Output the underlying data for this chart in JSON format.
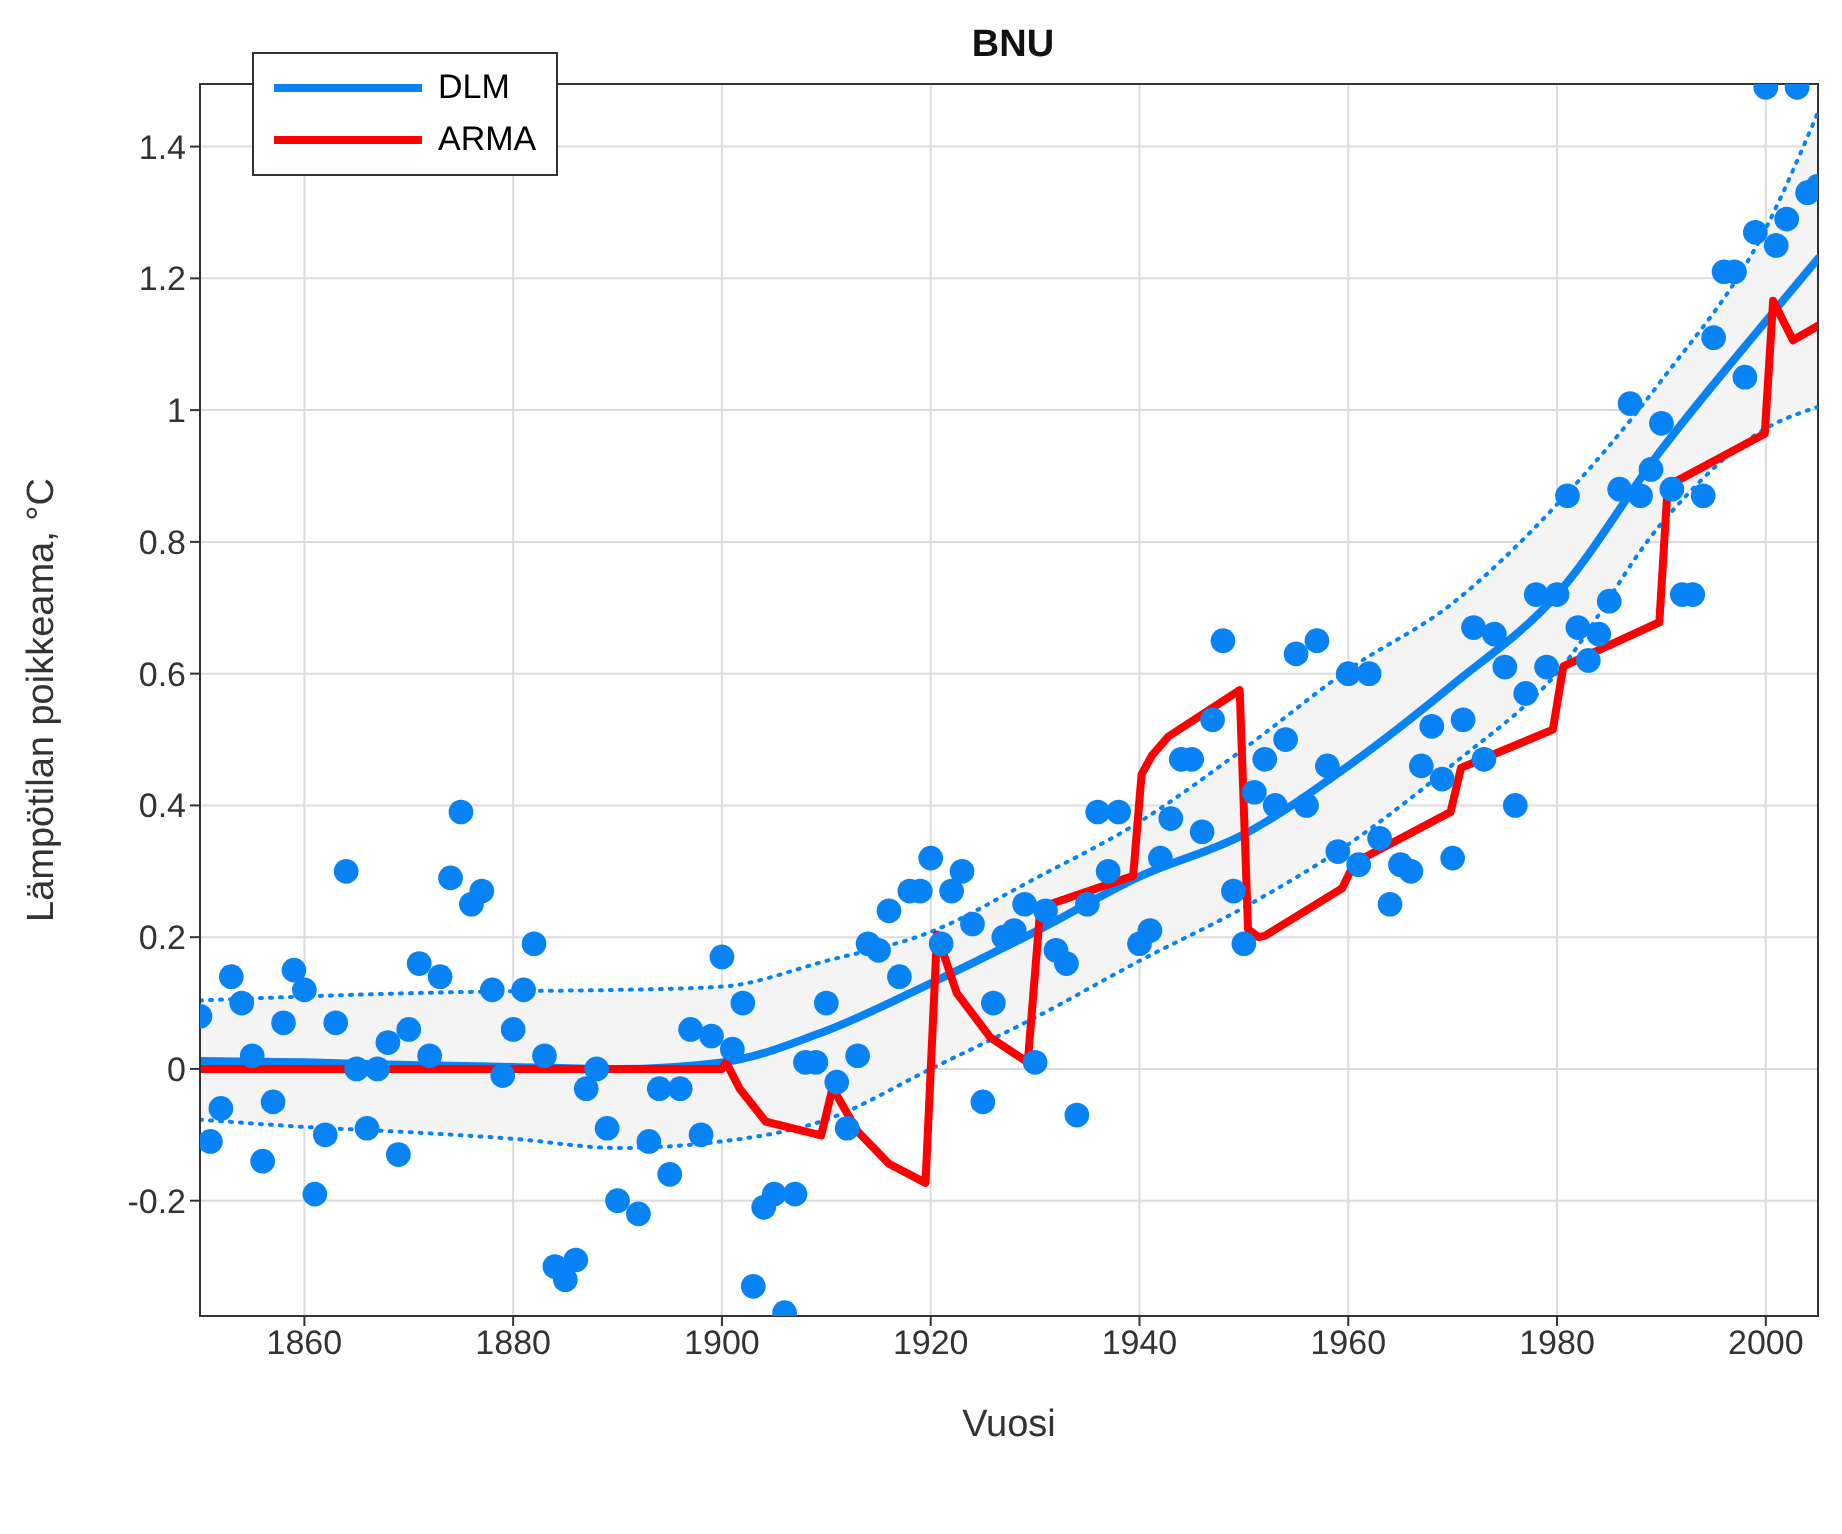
{
  "chart_data": {
    "type": "line",
    "title": "BNU",
    "xlabel": "Vuosi",
    "ylabel": "Lämpötilan poikkeama, °C",
    "xlim": [
      1850,
      2005
    ],
    "xticks": [
      1860,
      1880,
      1900,
      1920,
      1940,
      1960,
      1980,
      2000
    ],
    "ylim": [
      -0.375,
      1.495
    ],
    "yticks": [
      -0.2,
      0,
      0.2,
      0.4,
      0.6,
      0.8,
      1,
      1.2,
      1.4
    ],
    "grid": true,
    "legend": "top left",
    "series": [
      {
        "type": "scatter",
        "marker": "circle",
        "color": "#0883f5",
        "x": [
          1850,
          1851,
          1852,
          1853,
          1854,
          1855,
          1856,
          1857,
          1858,
          1859,
          1860,
          1861,
          1862,
          1863,
          1864,
          1865,
          1866,
          1867,
          1868,
          1869,
          1870,
          1871,
          1872,
          1873,
          1874,
          1875,
          1876,
          1877,
          1878,
          1879,
          1880,
          1881,
          1882,
          1883,
          1884,
          1885,
          1886,
          1887,
          1888,
          1889,
          1890,
          1892,
          1893,
          1894,
          1895,
          1896,
          1897,
          1898,
          1899,
          1900,
          1901,
          1902,
          1903,
          1904,
          1905,
          1906,
          1907,
          1908,
          1909,
          1910,
          1911,
          1912,
          1913,
          1914,
          1915,
          1916,
          1917,
          1918,
          1919,
          1920,
          1921,
          1922,
          1923,
          1924,
          1925,
          1926,
          1927,
          1928,
          1929,
          1930,
          1931,
          1932,
          1933,
          1934,
          1935,
          1936,
          1937,
          1938,
          1940,
          1941,
          1942,
          1943,
          1944,
          1945,
          1946,
          1947,
          1948,
          1949,
          1950,
          1951,
          1952,
          1953,
          1954,
          1955,
          1956,
          1957,
          1958,
          1959,
          1960,
          1961,
          1962,
          1963,
          1964,
          1965,
          1966,
          1967,
          1968,
          1969,
          1970,
          1971,
          1972,
          1973,
          1974,
          1975,
          1976,
          1977,
          1978,
          1979,
          1980,
          1981,
          1982,
          1983,
          1984,
          1985,
          1986,
          1987,
          1988,
          1989,
          1990,
          1991,
          1992,
          1993,
          1994,
          1995,
          1996,
          1997,
          1998,
          1999,
          2000,
          2001,
          2002,
          2003,
          2004,
          2005
        ],
        "values": [
          0.08,
          -0.11,
          -0.06,
          0.14,
          0.1,
          0.02,
          -0.14,
          -0.05,
          0.07,
          0.15,
          0.12,
          -0.19,
          -0.1,
          0.07,
          0.3,
          0,
          -0.09,
          0,
          0.04,
          -0.13,
          0.06,
          0.16,
          0.02,
          0.14,
          0.29,
          0.39,
          0.25,
          0.27,
          0.12,
          -0.01,
          0.06,
          0.12,
          0.19,
          0.02,
          -0.3,
          -0.32,
          -0.29,
          -0.03,
          0,
          -0.09,
          -0.2,
          -0.22,
          -0.11,
          -0.03,
          -0.16,
          -0.03,
          0.06,
          -0.1,
          0.05,
          0.17,
          0.03,
          0.1,
          -0.33,
          -0.21,
          -0.19,
          -0.37,
          -0.19,
          0.01,
          0.01,
          0.1,
          -0.02,
          -0.09,
          0.02,
          0.19,
          0.18,
          0.24,
          0.14,
          0.27,
          0.27,
          0.32,
          0.19,
          0.27,
          0.3,
          0.22,
          -0.05,
          0.1,
          0.2,
          0.21,
          0.25,
          0.01,
          0.24,
          0.18,
          0.16,
          -0.07,
          0.25,
          0.39,
          0.3,
          0.39,
          0.19,
          0.21,
          0.32,
          0.38,
          0.47,
          0.47,
          0.36,
          0.53,
          0.65,
          0.27,
          0.19,
          0.42,
          0.47,
          0.4,
          0.5,
          0.63,
          0.4,
          0.65,
          0.46,
          0.33,
          0.6,
          0.31,
          0.6,
          0.35,
          0.25,
          0.31,
          0.3,
          0.46,
          0.52,
          0.44,
          0.32,
          0.53,
          0.67,
          0.47,
          0.66,
          0.61,
          0.4,
          0.57,
          0.72,
          0.61,
          0.72,
          0.87,
          0.67,
          0.62,
          0.66,
          0.71,
          0.88,
          1.01,
          0.87,
          0.91,
          0.98,
          0.88,
          0.72,
          0.72,
          0.87,
          1.11,
          1.21,
          1.21,
          1.05,
          1.27,
          1.49,
          1.25,
          1.29,
          1.49,
          1.33,
          1.34
        ]
      },
      {
        "line_style": "dotted",
        "color": "#0883f5",
        "x": [
          1850,
          1860,
          1870,
          1880,
          1890,
          1900,
          1910,
          1920,
          1930,
          1940,
          1950,
          1960,
          1970,
          1980,
          1990,
          2000,
          2005
        ],
        "values": [
          -0.077,
          -0.088,
          -0.096,
          -0.106,
          -0.12,
          -0.11,
          -0.077,
          0,
          0.078,
          0.164,
          0.245,
          0.341,
          0.462,
          0.601,
          0.828,
          0.972,
          1.005
        ]
      },
      {
        "line_style": "dotted",
        "color": "#0883f5",
        "x": [
          1850,
          1860,
          1870,
          1880,
          1890,
          1900,
          1910,
          1920,
          1930,
          1940,
          1950,
          1960,
          1970,
          1980,
          1990,
          2000,
          2005
        ],
        "values": [
          0.104,
          0.11,
          0.115,
          0.118,
          0.12,
          0.125,
          0.164,
          0.208,
          0.289,
          0.375,
          0.486,
          0.606,
          0.707,
          0.857,
          1.045,
          1.276,
          1.452
        ]
      },
      {
        "name": "DLM",
        "color": "#0883f5",
        "x": [
          1850,
          1860,
          1870,
          1880,
          1890,
          1900,
          1910,
          1920,
          1930,
          1940,
          1950,
          1960,
          1970,
          1980,
          1990,
          2000,
          2005
        ],
        "values": [
          0.012,
          0.01,
          0.006,
          0.003,
          0,
          0.01,
          0.058,
          0.13,
          0.208,
          0.292,
          0.356,
          0.46,
          0.583,
          0.72,
          0.94,
          1.135,
          1.23
        ],
        "lower": [
          -0.077,
          -0.088,
          -0.096,
          -0.106,
          -0.12,
          -0.11,
          -0.077,
          0,
          0.078,
          0.164,
          0.245,
          0.341,
          0.462,
          0.601,
          0.828,
          0.972,
          1.005
        ],
        "upper": [
          0.104,
          0.11,
          0.115,
          0.118,
          0.12,
          0.125,
          0.164,
          0.208,
          0.289,
          0.375,
          0.486,
          0.606,
          0.707,
          0.857,
          1.045,
          1.276,
          1.452
        ]
      },
      {
        "name": "ARMA",
        "color": "#ff0000",
        "x": [
          1850,
          1900,
          1900.4,
          1901.7,
          1904.2,
          1909.5,
          1910.6,
          1913,
          1916,
          1919.5,
          1920.6,
          1922.5,
          1925.7,
          1929.3,
          1930.5,
          1939.4,
          1940.2,
          1941.2,
          1942.8,
          1949.6,
          1950.4,
          1951.4,
          1952,
          1959.4,
          1960.6,
          1969.8,
          1970.8,
          1979.6,
          1980.6,
          1989.8,
          1990.6,
          1999.9,
          2000.7,
          2002.6,
          2005
        ],
        "values": [
          0,
          0,
          0.01,
          -0.03,
          -0.08,
          -0.101,
          -0.029,
          -0.095,
          -0.144,
          -0.173,
          0.204,
          0.115,
          0.048,
          0.01,
          0.245,
          0.293,
          0.447,
          0.476,
          0.505,
          0.575,
          0.212,
          0.2,
          0.202,
          0.274,
          0.313,
          0.39,
          0.457,
          0.515,
          0.611,
          0.678,
          0.885,
          0.964,
          1.166,
          1.106,
          1.128
        ]
      }
    ]
  }
}
